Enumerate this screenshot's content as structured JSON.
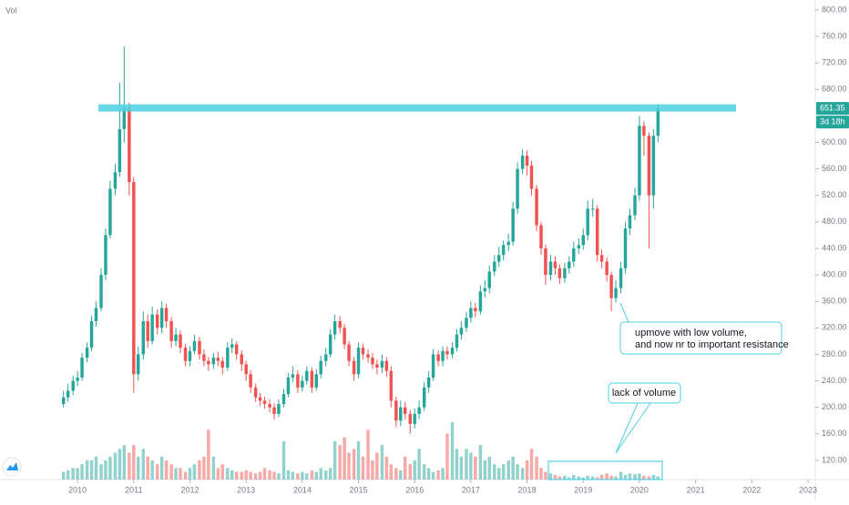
{
  "chart_data": {
    "type": "candlestick",
    "volume_label": "Vol",
    "x": [
      2009.75,
      2009.83,
      2009.92,
      2010,
      2010.08,
      2010.17,
      2010.25,
      2010.33,
      2010.42,
      2010.5,
      2010.58,
      2010.67,
      2010.75,
      2010.83,
      2010.92,
      2011,
      2011.08,
      2011.17,
      2011.25,
      2011.33,
      2011.42,
      2011.5,
      2011.58,
      2011.67,
      2011.75,
      2011.83,
      2011.92,
      2012,
      2012.08,
      2012.17,
      2012.25,
      2012.33,
      2012.42,
      2012.5,
      2012.58,
      2012.67,
      2012.75,
      2012.83,
      2012.92,
      2013,
      2013.08,
      2013.17,
      2013.25,
      2013.33,
      2013.42,
      2013.5,
      2013.58,
      2013.67,
      2013.75,
      2013.83,
      2013.92,
      2014,
      2014.08,
      2014.17,
      2014.25,
      2014.33,
      2014.42,
      2014.5,
      2014.58,
      2014.67,
      2014.75,
      2014.83,
      2014.92,
      2015,
      2015.08,
      2015.17,
      2015.25,
      2015.33,
      2015.42,
      2015.5,
      2015.58,
      2015.67,
      2015.75,
      2015.83,
      2015.92,
      2016,
      2016.08,
      2016.17,
      2016.25,
      2016.33,
      2016.42,
      2016.5,
      2016.58,
      2016.67,
      2016.75,
      2016.83,
      2016.92,
      2017,
      2017.08,
      2017.17,
      2017.25,
      2017.33,
      2017.42,
      2017.5,
      2017.58,
      2017.67,
      2017.75,
      2017.83,
      2017.92,
      2018,
      2018.08,
      2018.17,
      2018.25,
      2018.33,
      2018.42,
      2018.5,
      2018.58,
      2018.67,
      2018.75,
      2018.83,
      2018.92,
      2019,
      2019.08,
      2019.17,
      2019.25,
      2019.33,
      2019.42,
      2019.5,
      2019.58,
      2019.67,
      2019.75,
      2019.83,
      2019.92,
      2020,
      2020.08,
      2020.17,
      2020.25,
      2020.33
    ],
    "open": [
      205,
      215,
      225,
      240,
      245,
      275,
      290,
      330,
      350,
      400,
      460,
      530,
      555,
      620,
      652,
      540,
      250,
      280,
      330,
      300,
      340,
      320,
      350,
      330,
      300,
      310,
      290,
      270,
      285,
      300,
      280,
      270,
      265,
      275,
      270,
      260,
      290,
      295,
      280,
      265,
      250,
      230,
      215,
      210,
      205,
      200,
      190,
      205,
      220,
      245,
      250,
      230,
      240,
      255,
      230,
      250,
      270,
      280,
      310,
      330,
      320,
      295,
      270,
      250,
      290,
      280,
      275,
      265,
      260,
      270,
      255,
      210,
      180,
      200,
      190,
      175,
      190,
      200,
      230,
      245,
      280,
      270,
      285,
      280,
      290,
      310,
      320,
      335,
      350,
      345,
      375,
      380,
      405,
      420,
      430,
      445,
      450,
      500,
      560,
      580,
      565,
      530,
      475,
      440,
      400,
      420,
      410,
      395,
      410,
      420,
      440,
      445,
      460,
      500,
      500,
      430,
      420,
      400,
      365,
      380,
      410,
      470,
      490,
      520,
      625,
      610,
      520,
      610
    ],
    "high": [
      225,
      235,
      248,
      255,
      282,
      298,
      338,
      360,
      410,
      470,
      542,
      568,
      690,
      745,
      660,
      548,
      292,
      345,
      340,
      352,
      348,
      360,
      356,
      336,
      320,
      316,
      296,
      292,
      310,
      306,
      288,
      276,
      282,
      284,
      276,
      298,
      304,
      300,
      286,
      270,
      256,
      236,
      222,
      216,
      212,
      206,
      212,
      228,
      252,
      262,
      256,
      248,
      262,
      260,
      258,
      278,
      290,
      318,
      340,
      338,
      326,
      300,
      276,
      298,
      296,
      288,
      282,
      272,
      280,
      276,
      262,
      216,
      210,
      208,
      196,
      198,
      210,
      238,
      255,
      288,
      286,
      292,
      292,
      298,
      318,
      330,
      344,
      360,
      358,
      384,
      392,
      414,
      430,
      442,
      452,
      462,
      510,
      570,
      590,
      588,
      572,
      536,
      480,
      446,
      430,
      428,
      416,
      418,
      428,
      450,
      455,
      470,
      512,
      515,
      505,
      438,
      426,
      405,
      392,
      420,
      480,
      500,
      532,
      640,
      632,
      615,
      620,
      658
    ],
    "low": [
      200,
      208,
      218,
      232,
      240,
      268,
      285,
      322,
      345,
      392,
      455,
      520,
      548,
      600,
      520,
      222,
      240,
      272,
      290,
      295,
      310,
      312,
      320,
      290,
      292,
      282,
      262,
      262,
      280,
      272,
      262,
      255,
      258,
      262,
      250,
      255,
      282,
      272,
      255,
      240,
      222,
      208,
      202,
      198,
      192,
      182,
      185,
      200,
      215,
      238,
      222,
      224,
      234,
      222,
      225,
      244,
      262,
      275,
      302,
      312,
      288,
      262,
      240,
      244,
      272,
      268,
      258,
      250,
      252,
      246,
      200,
      170,
      172,
      182,
      160,
      168,
      182,
      195,
      222,
      240,
      262,
      262,
      272,
      274,
      284,
      302,
      314,
      328,
      336,
      340,
      366,
      372,
      398,
      412,
      422,
      436,
      444,
      492,
      552,
      550,
      520,
      466,
      430,
      385,
      392,
      400,
      386,
      388,
      402,
      412,
      432,
      438,
      452,
      488,
      420,
      410,
      390,
      345,
      358,
      372,
      402,
      460,
      482,
      512,
      580,
      440,
      500,
      600
    ],
    "close": [
      215,
      225,
      240,
      245,
      275,
      290,
      330,
      350,
      400,
      460,
      530,
      555,
      620,
      652,
      540,
      250,
      280,
      330,
      300,
      340,
      320,
      350,
      330,
      300,
      310,
      290,
      270,
      285,
      300,
      280,
      270,
      265,
      275,
      270,
      260,
      290,
      295,
      280,
      265,
      250,
      230,
      215,
      210,
      205,
      200,
      190,
      205,
      220,
      245,
      250,
      230,
      240,
      255,
      230,
      250,
      270,
      280,
      310,
      330,
      320,
      295,
      270,
      250,
      290,
      280,
      275,
      265,
      260,
      270,
      255,
      210,
      180,
      200,
      190,
      175,
      190,
      200,
      230,
      245,
      280,
      270,
      285,
      280,
      290,
      310,
      320,
      335,
      350,
      345,
      375,
      380,
      405,
      420,
      430,
      445,
      450,
      500,
      560,
      580,
      565,
      530,
      475,
      440,
      400,
      420,
      410,
      395,
      410,
      420,
      440,
      445,
      460,
      500,
      500,
      430,
      420,
      400,
      365,
      380,
      410,
      470,
      490,
      520,
      625,
      610,
      520,
      610,
      651.35
    ],
    "volume": [
      10,
      12,
      15,
      15,
      20,
      25,
      25,
      30,
      20,
      25,
      30,
      35,
      40,
      45,
      35,
      45,
      30,
      40,
      30,
      25,
      20,
      30,
      25,
      20,
      15,
      15,
      10,
      15,
      20,
      25,
      30,
      65,
      30,
      15,
      20,
      15,
      12,
      10,
      10,
      12,
      10,
      8,
      10,
      15,
      12,
      10,
      8,
      50,
      12,
      10,
      8,
      10,
      8,
      12,
      10,
      15,
      12,
      15,
      50,
      45,
      55,
      35,
      40,
      50,
      30,
      65,
      25,
      35,
      45,
      30,
      20,
      15,
      12,
      30,
      20,
      25,
      40,
      20,
      15,
      10,
      12,
      15,
      60,
      75,
      40,
      30,
      40,
      35,
      30,
      45,
      25,
      30,
      20,
      15,
      20,
      25,
      30,
      20,
      15,
      25,
      40,
      30,
      15,
      10,
      8,
      6,
      4,
      5,
      3,
      6,
      4,
      3,
      5,
      4,
      3,
      6,
      8,
      5,
      4,
      10,
      6,
      8,
      7,
      8,
      5,
      4,
      6,
      4
    ],
    "xlim": [
      2008.62,
      2023.13
    ],
    "xticks": [
      2010,
      2011,
      2012,
      2013,
      2014,
      2015,
      2016,
      2017,
      2018,
      2019,
      2020,
      2021,
      2022,
      2023
    ],
    "ylim": [
      91,
      815
    ],
    "yticks": [
      {
        "value": 120,
        "label": "120.00"
      },
      {
        "value": 160,
        "label": "160.00"
      },
      {
        "value": 200,
        "label": "200.00"
      },
      {
        "value": 240,
        "label": "240.00"
      },
      {
        "value": 280,
        "label": "280.00"
      },
      {
        "value": 320,
        "label": "320.00"
      },
      {
        "value": 360,
        "label": "360.00"
      },
      {
        "value": 400,
        "label": "400.00"
      },
      {
        "value": 440,
        "label": "440.00"
      },
      {
        "value": 480,
        "label": "480.00"
      },
      {
        "value": 520,
        "label": "520.00"
      },
      {
        "value": 560,
        "label": "560.00"
      },
      {
        "value": 600,
        "label": "600.00"
      },
      {
        "value": 680,
        "label": "680.00"
      },
      {
        "value": 720,
        "label": "720.00"
      },
      {
        "value": 760,
        "label": "760.00"
      },
      {
        "value": 800,
        "label": "800.00"
      }
    ],
    "vlim": [
      0,
      95
    ],
    "up_color": "#26a69a",
    "down_color": "#ef5350",
    "last_price": {
      "value": 651.35,
      "label": "651.35"
    },
    "countdown": "3d 18h",
    "resistance": {
      "price": 652,
      "x": [
        2010.37,
        2021.72
      ],
      "color": "#4dd0e1"
    },
    "annotations": [
      {
        "lines": [
          "upmove with low volume,",
          "and now nr to important resistance"
        ]
      },
      {
        "text": "lack of volume"
      }
    ]
  }
}
